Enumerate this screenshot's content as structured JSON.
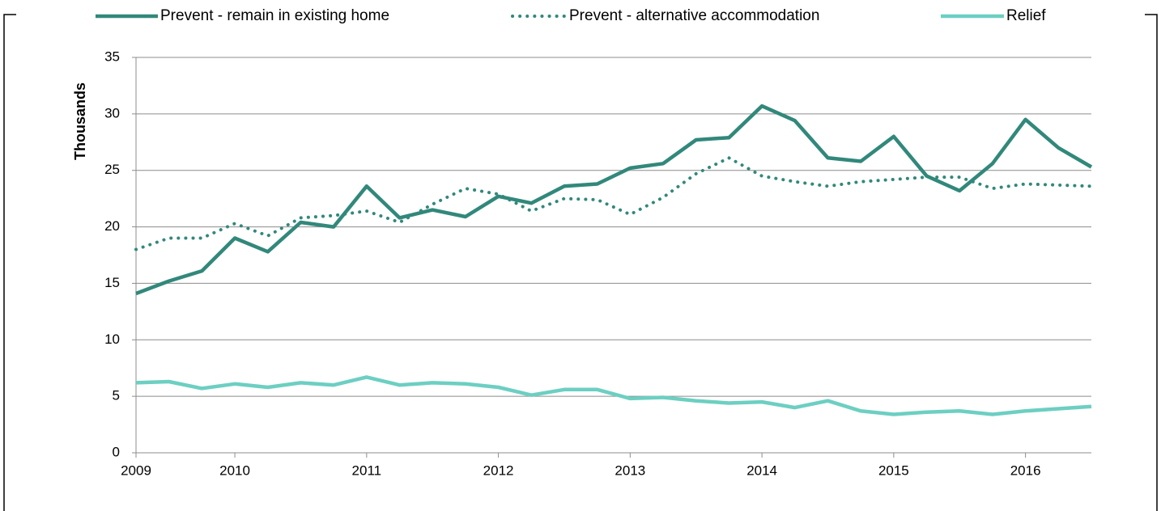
{
  "chart_data": {
    "type": "line",
    "y_label": "Thousands",
    "categories": [
      "2009",
      null,
      null,
      "2010",
      null,
      null,
      null,
      "2011",
      null,
      null,
      null,
      "2012",
      null,
      null,
      null,
      "2013",
      null,
      null,
      null,
      "2014",
      null,
      null,
      null,
      "2015",
      null,
      null,
      null,
      "2016",
      null,
      null
    ],
    "series": [
      {
        "name": "Prevent - remain in existing home",
        "color": "#31887b",
        "style": "solid",
        "values": [
          14.1,
          15.2,
          16.1,
          19.0,
          17.8,
          20.4,
          20.0,
          23.6,
          20.8,
          21.5,
          20.9,
          22.7,
          22.1,
          23.6,
          23.8,
          25.2,
          25.6,
          27.7,
          27.9,
          30.7,
          29.4,
          26.1,
          25.8,
          28.0,
          24.5,
          23.2,
          25.6,
          29.5,
          27.0,
          25.3
        ]
      },
      {
        "name": "Prevent - alternative accommodation",
        "color": "#31887b",
        "style": "dotted",
        "values": [
          18.0,
          19.0,
          19.0,
          20.3,
          19.2,
          20.8,
          21.0,
          21.4,
          20.4,
          22.0,
          23.4,
          22.9,
          21.4,
          22.5,
          22.4,
          21.1,
          22.6,
          24.7,
          26.1,
          24.5,
          24.0,
          23.6,
          24.0,
          24.2,
          24.4,
          24.4,
          23.4,
          23.8,
          23.7,
          23.6
        ]
      },
      {
        "name": "Relief",
        "color": "#6ccfc2",
        "style": "solid",
        "values": [
          6.2,
          6.3,
          5.7,
          6.1,
          5.8,
          6.2,
          6.0,
          6.7,
          6.0,
          6.2,
          6.1,
          5.8,
          5.1,
          5.6,
          5.6,
          4.8,
          4.9,
          4.6,
          4.4,
          4.5,
          4.0,
          4.6,
          3.7,
          3.4,
          3.6,
          3.7,
          3.4,
          3.7,
          3.9,
          4.1
        ]
      }
    ],
    "ylim": [
      0,
      35
    ],
    "yticks": [
      0,
      5,
      10,
      15,
      20,
      25,
      30,
      35
    ],
    "grid": true,
    "legend": "top"
  }
}
